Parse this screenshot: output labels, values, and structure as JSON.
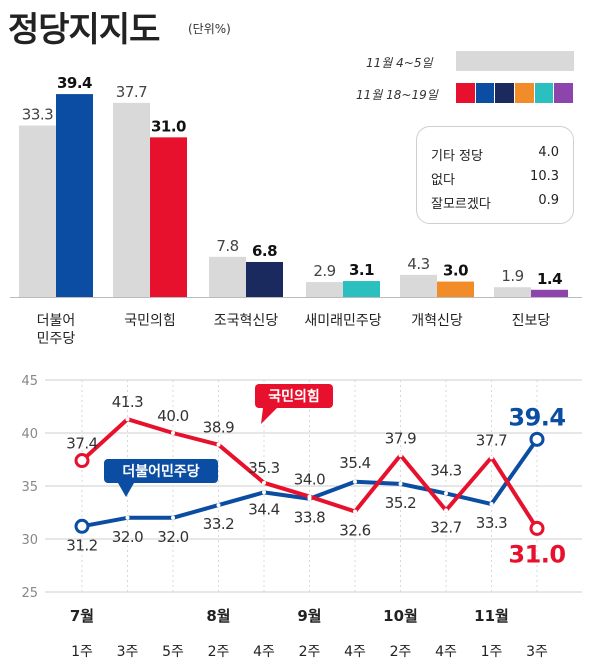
{
  "title": "정당지지도",
  "unit": "(단위%)",
  "legend": {
    "previous": {
      "label": "11월 4~5일",
      "color": "#d9d9d9"
    },
    "current": {
      "label": "11월 18~19일",
      "colors": [
        "#e8112d",
        "#0a4da2",
        "#1a2a5e",
        "#f28c28",
        "#2cbfbf",
        "#8e44ad"
      ]
    }
  },
  "others": [
    {
      "label": "기타 정당",
      "value": "4.0"
    },
    {
      "label": "없다",
      "value": "10.3"
    },
    {
      "label": "잘모르겠다",
      "value": "0.9"
    }
  ],
  "chart_data": [
    {
      "type": "bar",
      "categories": [
        "더불어\n민주당",
        "국민의힘",
        "조국혁신당",
        "새미래민주당",
        "개혁신당",
        "진보당"
      ],
      "series": [
        {
          "name": "11월 4~5일",
          "values": [
            33.3,
            37.7,
            7.8,
            2.9,
            4.3,
            1.9
          ],
          "color": "#d9d9d9"
        },
        {
          "name": "11월 18~19일",
          "values": [
            39.4,
            31.0,
            6.8,
            3.1,
            3.0,
            1.4
          ],
          "colors": [
            "#0a4da2",
            "#e8112d",
            "#1a2a5e",
            "#2cbfbf",
            "#f28c28",
            "#8e44ad"
          ]
        }
      ],
      "ylim": [
        0,
        40
      ]
    },
    {
      "type": "line",
      "x": [
        "1주",
        "3주",
        "5주",
        "2주",
        "4주",
        "2주",
        "4주",
        "2주",
        "4주",
        "1주",
        "3주"
      ],
      "month_labels": [
        {
          "label": "7월",
          "index": 0
        },
        {
          "label": "8월",
          "index": 3
        },
        {
          "label": "9월",
          "index": 5
        },
        {
          "label": "10월",
          "index": 7
        },
        {
          "label": "11월",
          "index": 9
        }
      ],
      "series": [
        {
          "name": "국민의힘",
          "color": "#e8112d",
          "values": [
            37.4,
            41.3,
            40.0,
            38.9,
            35.3,
            34.0,
            32.6,
            37.9,
            32.7,
            37.7,
            31.0
          ],
          "labels": [
            "37.4",
            "41.3",
            "40.0",
            "38.9",
            "35.3",
            "34.0",
            "32.6",
            "37.9",
            "32.7",
            "37.7",
            "31.0"
          ]
        },
        {
          "name": "더불어민주당",
          "color": "#0a4da2",
          "values": [
            31.2,
            32.0,
            32.0,
            33.2,
            34.4,
            33.8,
            35.4,
            35.2,
            34.3,
            33.3,
            39.4
          ],
          "labels": [
            "31.2",
            "32.0",
            "32.0",
            "33.2",
            "34.4",
            "33.8",
            "35.4",
            "35.2",
            "34.3",
            "33.3",
            "39.4"
          ]
        }
      ],
      "ylim": [
        25,
        45
      ],
      "yticks": [
        25,
        30,
        35,
        40,
        45
      ],
      "grid": true
    }
  ]
}
